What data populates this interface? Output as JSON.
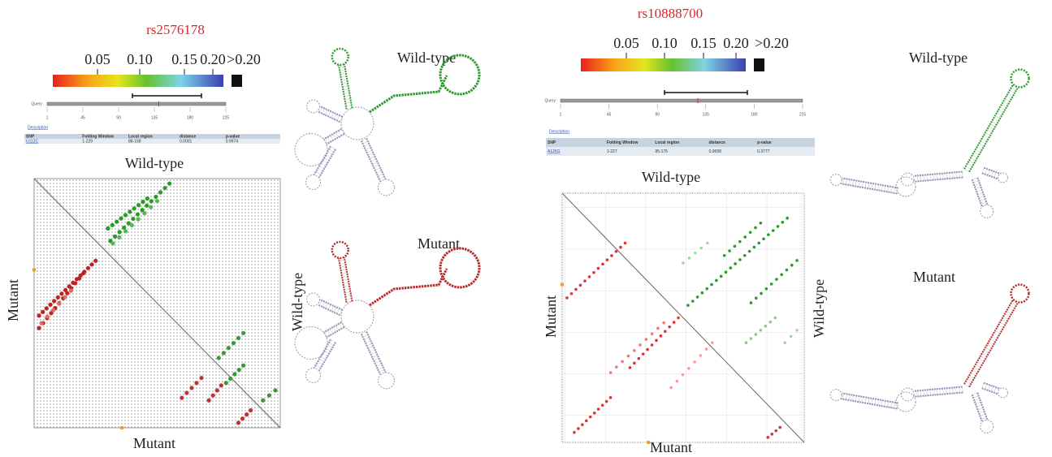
{
  "panels": [
    {
      "title": "rs2576178",
      "scale_labels": [
        "0.05",
        "0.10",
        "0.15",
        "0.20",
        ">0.20"
      ],
      "query_label": "Query",
      "query_ticks": [
        "1",
        "45",
        "90",
        "135",
        "180",
        "225"
      ],
      "description_label": "Description",
      "table": {
        "headers": [
          "SNP",
          "Folding Window",
          "Local region",
          "distance",
          "p-value"
        ],
        "rows": [
          [
            "U112C",
            "1-229",
            "88-158",
            "0.0001",
            "0.9974"
          ]
        ]
      },
      "matrix_top_label": "Wild-type",
      "matrix_bottom_label": "Mutant",
      "matrix_left_label": "Mutant",
      "matrix_right_label": "Wild-type",
      "structure_top_label": "Wild-type",
      "structure_bottom_label": "Mutant"
    },
    {
      "title": "rs10888700",
      "scale_labels": [
        "0.05",
        "0.10",
        "0.15",
        "0.20",
        ">0.20"
      ],
      "query_label": "Query",
      "query_ticks": [
        "1",
        "45",
        "90",
        "135",
        "180",
        "225"
      ],
      "description_label": "Description",
      "table": {
        "headers": [
          "SNP",
          "Folding Window",
          "Local region",
          "distance",
          "p-value"
        ],
        "rows": [
          [
            "A126G",
            "1-227",
            "95-175",
            "0.0658",
            "0.3777"
          ]
        ]
      },
      "matrix_top_label": "Wild-type",
      "matrix_bottom_label": "Mutant",
      "matrix_left_label": "Mutant",
      "matrix_right_label": "Wild-type",
      "structure_top_label": "Wild-type",
      "structure_bottom_label": "Mutant"
    }
  ]
}
